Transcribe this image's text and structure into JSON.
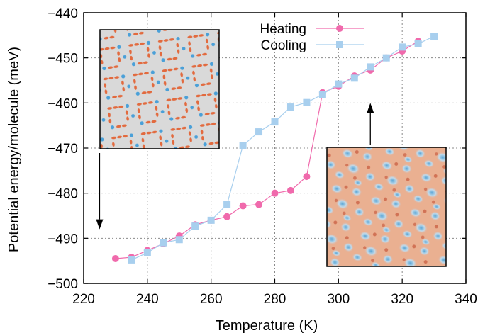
{
  "chart_data": {
    "type": "line",
    "title": "",
    "xlabel": "Temperature (K)",
    "ylabel": "Potential energy/molecule (meV)",
    "xlim": [
      220,
      340
    ],
    "ylim": [
      -500,
      -440
    ],
    "xticks": [
      220,
      240,
      260,
      280,
      300,
      320,
      340
    ],
    "yticks": [
      -440,
      -450,
      -460,
      -470,
      -480,
      -490,
      -500
    ],
    "grid": true,
    "legend": "top-center",
    "series": [
      {
        "name": "Heating",
        "color": "#f06aac",
        "marker": "circle",
        "x": [
          230,
          235,
          240,
          245,
          250,
          255,
          260,
          265,
          270,
          275,
          280,
          285,
          290,
          295,
          300,
          305,
          310,
          315,
          320,
          325
        ],
        "y": [
          -494.5,
          -494.2,
          -492.7,
          -491.2,
          -489.5,
          -487.0,
          -486.0,
          -485.2,
          -482.8,
          -482.5,
          -480.0,
          -479.4,
          -476.3,
          -457.7,
          -456.3,
          -454.0,
          -452.7,
          -450.0,
          -448.5,
          -446.3
        ]
      },
      {
        "name": "Cooling",
        "color": "#a8cfee",
        "marker": "square",
        "x": [
          235,
          240,
          245,
          250,
          255,
          260,
          265,
          270,
          275,
          280,
          285,
          290,
          295,
          300,
          305,
          310,
          315,
          320,
          325,
          330
        ],
        "y": [
          -494.8,
          -493.2,
          -491.0,
          -490.3,
          -487.3,
          -486.0,
          -482.5,
          -469.4,
          -466.4,
          -464.2,
          -460.9,
          -459.9,
          -458.1,
          -455.8,
          -454.5,
          -452.0,
          -450.0,
          -447.6,
          -446.9,
          -445.2
        ]
      }
    ],
    "insets": [
      {
        "description": "snapshot image",
        "anchor_x": 225,
        "anchor_y": -488,
        "arrow": "down"
      },
      {
        "description": "snapshot image",
        "anchor_x": 310,
        "anchor_y": -460,
        "arrow": "up"
      }
    ]
  }
}
